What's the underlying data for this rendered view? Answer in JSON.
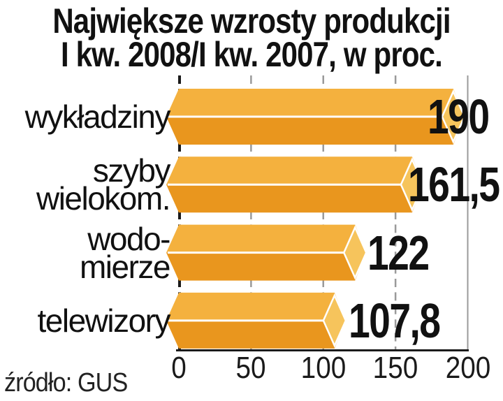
{
  "title": {
    "line1": "Największe wzrosty produkcji",
    "line2": "I kw. 2008/I kw. 2007, w proc."
  },
  "source": "źródło: GUS",
  "chart_data": {
    "type": "bar",
    "orientation": "horizontal",
    "title": "Największe wzrosty produkcji I kw. 2008/I kw. 2007, w proc.",
    "unit": "proc.",
    "categories": [
      "wykładziny",
      "szyby wielokom.",
      "wodo-mierze",
      "telewizory"
    ],
    "category_lines": [
      [
        "wykładziny"
      ],
      [
        "szyby",
        "wielokom."
      ],
      [
        "wodo-",
        "mierze"
      ],
      [
        "telewizory"
      ]
    ],
    "values": [
      190,
      161.5,
      122,
      107.8
    ],
    "value_labels": [
      "190",
      "161,5",
      "122",
      "107,8"
    ],
    "xticks": [
      0,
      50,
      100,
      150,
      200
    ],
    "xlim": [
      0,
      200
    ],
    "xlabel": "",
    "ylabel": "",
    "legend": null,
    "grid": "dashed vertical gridlines at 0/50/100/150, solid right border at 200",
    "source": "źródło: GUS",
    "colors": {
      "bar_top": "#F4B13E",
      "bar_bottom": "#E9961E",
      "bar_cap": "#F6C45C",
      "separator": "#FFFFFF",
      "grid": "#9A9A9A",
      "axis": "#1A1A1A",
      "text": "#111111",
      "background": "#FFFFFF"
    }
  }
}
